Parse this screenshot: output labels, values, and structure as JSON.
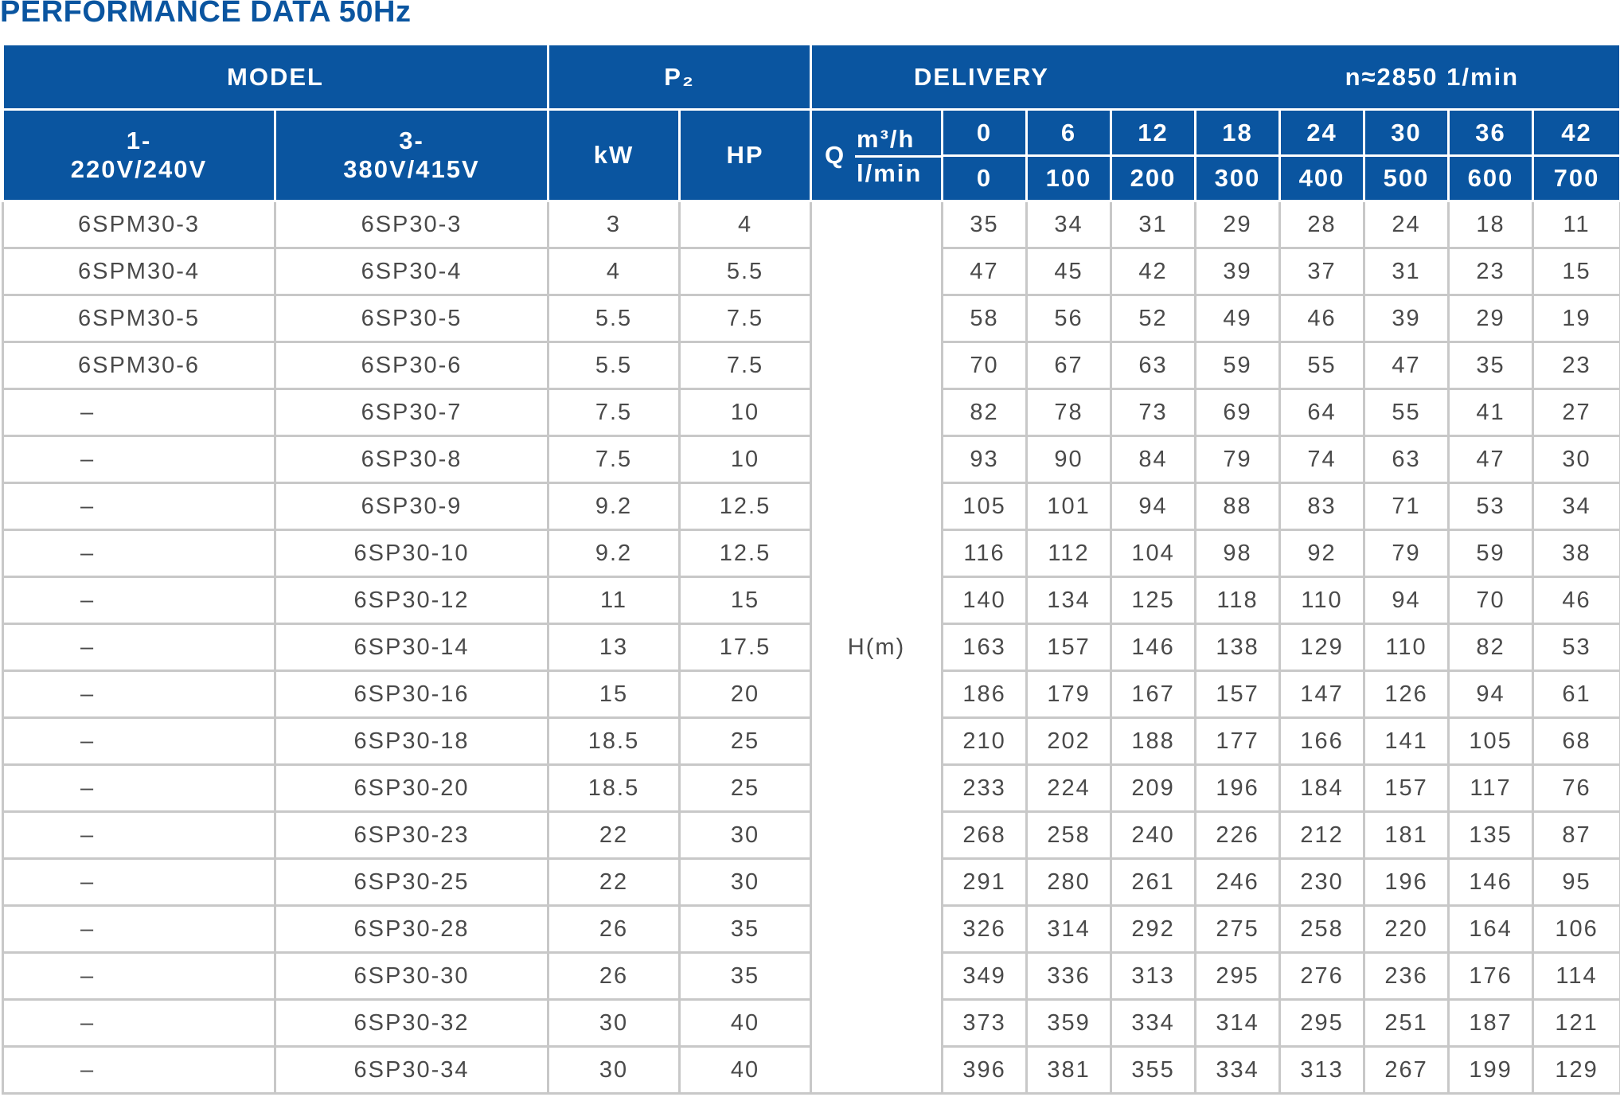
{
  "title": "PERFORMANCE DATA 50Hz",
  "header": {
    "model": "MODEL",
    "p2": "P₂",
    "delivery": "DELIVERY",
    "speed": "n≈2850  1/min",
    "single_phase": "1-\n220V/240V",
    "three_phase": "3-\n380V/415V",
    "kw": "kW",
    "hp": "HP",
    "q": "Q",
    "unit_m3h": "m³/h",
    "unit_lmin": "l/min",
    "flow_m3h": [
      "0",
      "6",
      "12",
      "18",
      "24",
      "30",
      "36",
      "42"
    ],
    "flow_lmin": [
      "0",
      "100",
      "200",
      "300",
      "400",
      "500",
      "600",
      "700"
    ],
    "head_label": "H(m)"
  },
  "rows": [
    {
      "m1": "6SPM30-3",
      "m3": "6SP30-3",
      "kw": "3",
      "hp": "4",
      "h": [
        "35",
        "34",
        "31",
        "29",
        "28",
        "24",
        "18",
        "11"
      ]
    },
    {
      "m1": "6SPM30-4",
      "m3": "6SP30-4",
      "kw": "4",
      "hp": "5.5",
      "h": [
        "47",
        "45",
        "42",
        "39",
        "37",
        "31",
        "23",
        "15"
      ]
    },
    {
      "m1": "6SPM30-5",
      "m3": "6SP30-5",
      "kw": "5.5",
      "hp": "7.5",
      "h": [
        "58",
        "56",
        "52",
        "49",
        "46",
        "39",
        "29",
        "19"
      ]
    },
    {
      "m1": "6SPM30-6",
      "m3": "6SP30-6",
      "kw": "5.5",
      "hp": "7.5",
      "h": [
        "70",
        "67",
        "63",
        "59",
        "55",
        "47",
        "35",
        "23"
      ]
    },
    {
      "m1": "–",
      "m3": "6SP30-7",
      "kw": "7.5",
      "hp": "10",
      "h": [
        "82",
        "78",
        "73",
        "69",
        "64",
        "55",
        "41",
        "27"
      ]
    },
    {
      "m1": "–",
      "m3": "6SP30-8",
      "kw": "7.5",
      "hp": "10",
      "h": [
        "93",
        "90",
        "84",
        "79",
        "74",
        "63",
        "47",
        "30"
      ]
    },
    {
      "m1": "–",
      "m3": "6SP30-9",
      "kw": "9.2",
      "hp": "12.5",
      "h": [
        "105",
        "101",
        "94",
        "88",
        "83",
        "71",
        "53",
        "34"
      ]
    },
    {
      "m1": "–",
      "m3": "6SP30-10",
      "kw": "9.2",
      "hp": "12.5",
      "h": [
        "116",
        "112",
        "104",
        "98",
        "92",
        "79",
        "59",
        "38"
      ]
    },
    {
      "m1": "–",
      "m3": "6SP30-12",
      "kw": "11",
      "hp": "15",
      "h": [
        "140",
        "134",
        "125",
        "118",
        "110",
        "94",
        "70",
        "46"
      ]
    },
    {
      "m1": "–",
      "m3": "6SP30-14",
      "kw": "13",
      "hp": "17.5",
      "h": [
        "163",
        "157",
        "146",
        "138",
        "129",
        "110",
        "82",
        "53"
      ]
    },
    {
      "m1": "–",
      "m3": "6SP30-16",
      "kw": "15",
      "hp": "20",
      "h": [
        "186",
        "179",
        "167",
        "157",
        "147",
        "126",
        "94",
        "61"
      ]
    },
    {
      "m1": "–",
      "m3": "6SP30-18",
      "kw": "18.5",
      "hp": "25",
      "h": [
        "210",
        "202",
        "188",
        "177",
        "166",
        "141",
        "105",
        "68"
      ]
    },
    {
      "m1": "–",
      "m3": "6SP30-20",
      "kw": "18.5",
      "hp": "25",
      "h": [
        "233",
        "224",
        "209",
        "196",
        "184",
        "157",
        "117",
        "76"
      ]
    },
    {
      "m1": "–",
      "m3": "6SP30-23",
      "kw": "22",
      "hp": "30",
      "h": [
        "268",
        "258",
        "240",
        "226",
        "212",
        "181",
        "135",
        "87"
      ]
    },
    {
      "m1": "–",
      "m3": "6SP30-25",
      "kw": "22",
      "hp": "30",
      "h": [
        "291",
        "280",
        "261",
        "246",
        "230",
        "196",
        "146",
        "95"
      ]
    },
    {
      "m1": "–",
      "m3": "6SP30-28",
      "kw": "26",
      "hp": "35",
      "h": [
        "326",
        "314",
        "292",
        "275",
        "258",
        "220",
        "164",
        "106"
      ]
    },
    {
      "m1": "–",
      "m3": "6SP30-30",
      "kw": "26",
      "hp": "35",
      "h": [
        "349",
        "336",
        "313",
        "295",
        "276",
        "236",
        "176",
        "114"
      ]
    },
    {
      "m1": "–",
      "m3": "6SP30-32",
      "kw": "30",
      "hp": "40",
      "h": [
        "373",
        "359",
        "334",
        "314",
        "295",
        "251",
        "187",
        "121"
      ]
    },
    {
      "m1": "–",
      "m3": "6SP30-34",
      "kw": "30",
      "hp": "40",
      "h": [
        "396",
        "381",
        "355",
        "334",
        "313",
        "267",
        "199",
        "129"
      ]
    }
  ],
  "colors": {
    "header_bg": "#0a55a0",
    "header_text": "#ffffff",
    "title": "#0a55a0",
    "grid": "#c8c8c8",
    "body_text": "#4a4a4a"
  }
}
